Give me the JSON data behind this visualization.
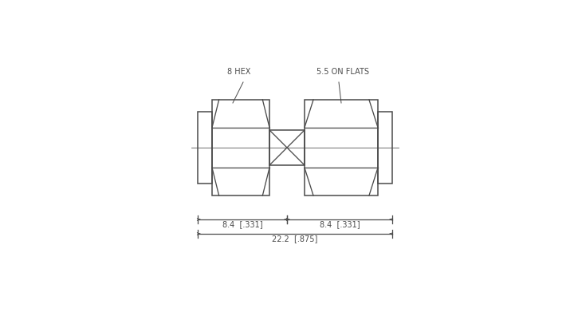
{
  "bg_color": "#ffffff",
  "line_color": "#4a4a4a",
  "lw": 1.1,
  "thin_lw": 0.7,
  "label_8hex": "8 HEX",
  "label_55flats": "5.5 ON FLATS",
  "dim1_label": "8.4  [.331]",
  "dim2_label": "8.4  [.331]",
  "dim3_label": "22.2  [.875]",
  "font_size": 7.0
}
